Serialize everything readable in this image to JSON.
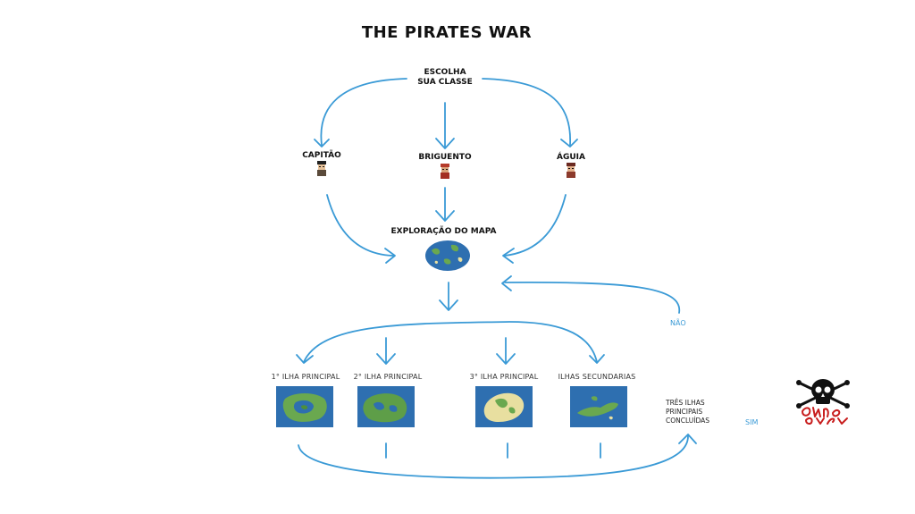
{
  "title": "THE PIRATES WAR",
  "start": {
    "line1": "ESCOLHA",
    "line2": "SUA CLASSE"
  },
  "classes": [
    {
      "label": "CAPITÃO"
    },
    {
      "label": "BRIGUENTO"
    },
    {
      "label": "ÁGUIA"
    }
  ],
  "map": {
    "label": "EXPLORAÇÃO DO MAPA"
  },
  "islands": [
    {
      "label": "1° ILHA PRINCIPAL"
    },
    {
      "label": "2° ILHA PRINCIPAL"
    },
    {
      "label": "3° ILHA PRINCIPAL"
    },
    {
      "label": "ILHAS SECUNDARIAS"
    }
  ],
  "check": {
    "line1": "TRÊS ILHAS",
    "line2": "PRINCIPAIS",
    "line3": "CONCLUÍDAS"
  },
  "edges": {
    "no": "NÃO",
    "yes": "SIM"
  },
  "colors": {
    "arrow": "#3a9ad6",
    "ocean": "#2e6fb0",
    "land": "#6aa84f",
    "sand": "#e8dfa0"
  }
}
